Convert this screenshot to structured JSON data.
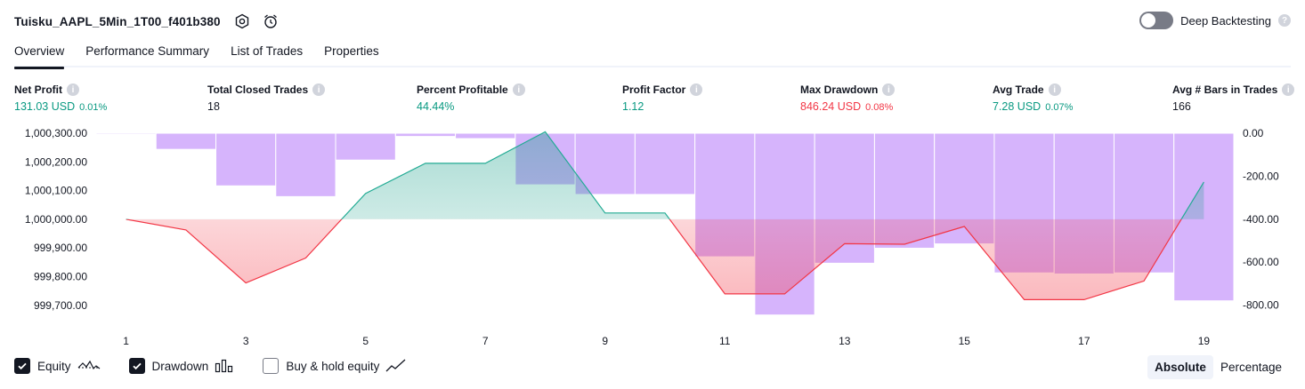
{
  "header": {
    "title": "Tuisku_AAPL_5Min_1T00_f401b380",
    "deep_backtesting_label": "Deep Backtesting"
  },
  "tabs": [
    {
      "label": "Overview",
      "active": true
    },
    {
      "label": "Performance Summary",
      "active": false
    },
    {
      "label": "List of Trades",
      "active": false
    },
    {
      "label": "Properties",
      "active": false
    }
  ],
  "stats": [
    {
      "label": "Net Profit",
      "value": "131.03 USD",
      "pct": "0.01%",
      "color": "green"
    },
    {
      "label": "Total Closed Trades",
      "value": "18",
      "pct": "",
      "color": "dark"
    },
    {
      "label": "Percent Profitable",
      "value": "44.44%",
      "pct": "",
      "color": "green"
    },
    {
      "label": "Profit Factor",
      "value": "1.12",
      "pct": "",
      "color": "green"
    },
    {
      "label": "Max Drawdown",
      "value": "846.24 USD",
      "pct": "0.08%",
      "color": "red"
    },
    {
      "label": "Avg Trade",
      "value": "7.28 USD",
      "pct": "0.07%",
      "color": "green"
    },
    {
      "label": "Avg # Bars in Trades",
      "value": "166",
      "pct": "",
      "color": "dark"
    }
  ],
  "chart_data": {
    "type": "line",
    "x": [
      1,
      2,
      3,
      4,
      5,
      6,
      7,
      8,
      9,
      10,
      11,
      12,
      13,
      14,
      15,
      16,
      17,
      18,
      19
    ],
    "x_tick_labels": [
      "1",
      "3",
      "5",
      "7",
      "9",
      "11",
      "13",
      "15",
      "17",
      "19"
    ],
    "left_axis": {
      "ylim": [
        999650,
        1000300
      ],
      "tick_values": [
        1000300,
        1000200,
        1000100,
        1000000,
        999900,
        999800,
        999700
      ],
      "tick_labels": [
        "1,000,300.00",
        "1,000,200.00",
        "1,000,100.00",
        "1,000,000.00",
        "999,900.00",
        "999,800.00",
        "999,700.00"
      ]
    },
    "right_axis": {
      "ylim": [
        -868,
        0
      ],
      "tick_values": [
        0,
        -200,
        -400,
        -600,
        -800
      ],
      "tick_labels": [
        "0.00",
        "-200.00",
        "-400.00",
        "-600.00",
        "-800.00"
      ]
    },
    "baseline": 1000000,
    "series": [
      {
        "name": "Equity",
        "type": "line",
        "axis": "left",
        "values": [
          1000000,
          999963,
          999778,
          999865,
          1000090,
          1000195,
          1000195,
          1000305,
          1000022,
          1000022,
          999740,
          999740,
          999915,
          999913,
          999975,
          999720,
          999720,
          999785,
          1000130
        ]
      },
      {
        "name": "Drawdown",
        "type": "bar",
        "axis": "right",
        "values": [
          -5,
          -75,
          -245,
          -295,
          -125,
          -15,
          -25,
          -240,
          -285,
          -285,
          -575,
          -846,
          -605,
          -535,
          -515,
          -650,
          -655,
          -650,
          -780
        ]
      }
    ],
    "colors": {
      "profit_line": "#22ab94",
      "loss_line": "#f23645",
      "profit_fill": "#089981",
      "loss_fill": "#f23645",
      "drawdown_bar": "#d6b4fc",
      "drawdown_bar_stroke": "#ffffff"
    }
  },
  "legend": [
    {
      "label": "Equity",
      "checked": true,
      "icon": "equity-icon"
    },
    {
      "label": "Drawdown",
      "checked": true,
      "icon": "drawdown-icon"
    },
    {
      "label": "Buy & hold equity",
      "checked": false,
      "icon": "buy-hold-icon"
    }
  ],
  "modes": {
    "absolute": "Absolute",
    "percentage": "Percentage",
    "active": "absolute"
  }
}
